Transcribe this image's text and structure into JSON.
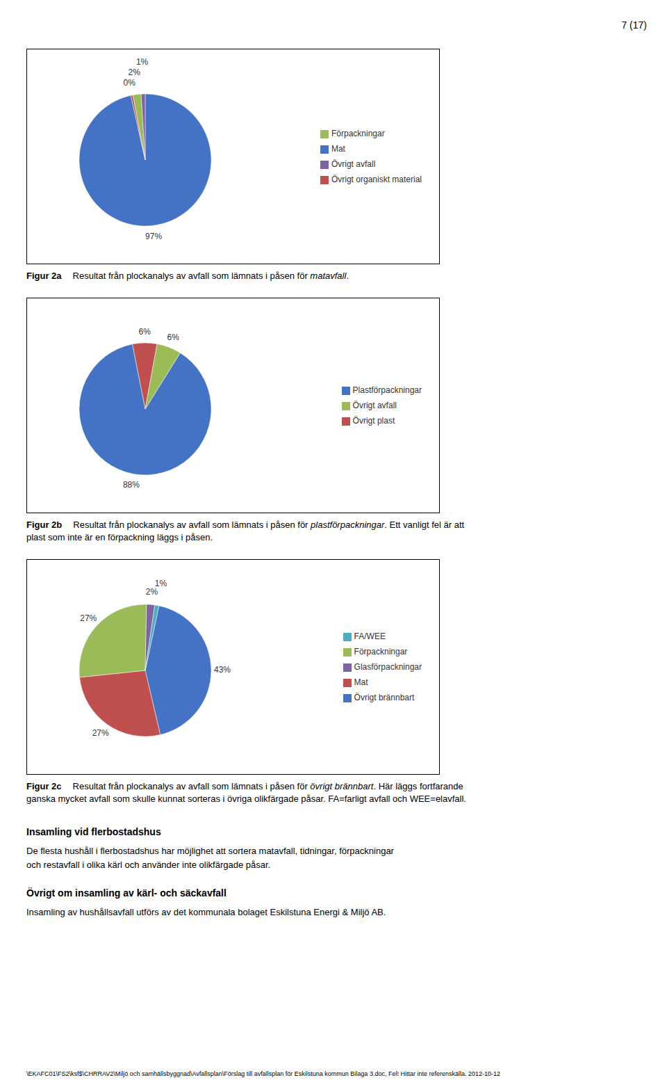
{
  "page_number": "7 (17)",
  "chart_data": [
    {
      "type": "pie",
      "categories": [
        "Mat",
        "Övrigt organiskt material",
        "Förpackningar",
        "Övrigt avfall"
      ],
      "values": [
        97,
        0.5,
        2,
        1
      ],
      "value_labels": [
        "97%",
        "0%",
        "2%",
        "1%"
      ],
      "colors": [
        "#4472C4",
        "#C0504D",
        "#9BBB59",
        "#8064A2"
      ],
      "data_labels": true,
      "legend": "right",
      "caption": [
        "Figur 2a",
        "Resultat från plockanalys av avfall som lämnats i påsen för ",
        "matavfall",
        "."
      ]
    },
    {
      "type": "pie",
      "categories": [
        "Plastförpackningar",
        "Övrigt plast",
        "Övrigt avfall"
      ],
      "values": [
        88,
        6,
        6
      ],
      "value_labels": [
        "88%",
        "6%",
        "6%"
      ],
      "colors": [
        "#4472C4",
        "#C0504D",
        "#9BBB59"
      ],
      "data_labels": true,
      "legend": "right",
      "caption": [
        "Figur 2b",
        "Resultat från plockanalys av avfall som lämnats i påsen för ",
        "plastförpackningar",
        ". Ett vanligt fel är att plast som inte är en förpackning läggs i påsen."
      ]
    },
    {
      "type": "pie",
      "categories": [
        "Övrigt brännbart",
        "Mat",
        "Förpackningar",
        "Glasförpackningar",
        "FA/WEE"
      ],
      "values": [
        43,
        27,
        27,
        2,
        1
      ],
      "value_labels": [
        "43%",
        "27%",
        "27%",
        "2%",
        "1%"
      ],
      "colors": [
        "#4472C4",
        "#C0504D",
        "#9BBB59",
        "#8064A2",
        "#4BACC6"
      ],
      "data_labels": true,
      "legend": "right",
      "caption": [
        "Figur 2c",
        "Resultat från plockanalys av avfall som lämnats i påsen för ",
        "övrigt brännbart",
        ". Här läggs fortfarande ganska mycket avfall som skulle kunnat sorteras i övriga olikfärgade påsar. FA=farligt avfall och WEE=elavfall."
      ]
    }
  ],
  "sections": [
    {
      "title": "Insamling vid flerbostadshus",
      "lines": [
        "De flesta hushåll i flerbostadshus har möjlighet att sortera matavfall, tidningar, förpackningar",
        "och restavfall i olika kärl och använder inte olikfärgade påsar."
      ]
    },
    {
      "title": "Övrigt om insamling av kärl- och säckavfall",
      "lines": [
        "Insamling av hushållsavfall utförs av det kommunala bolaget Eskilstuna Energi & Miljö AB."
      ]
    }
  ],
  "footer": "\\EKAFC01\\FS2\\ksf$\\CHRRAV2\\Miljö och samhällsbyggnad\\Avfallsplan\\Förslag till avfallsplan för Eskilstuna kommun Bilaga 3.doc, Fel! Hittar inte referenskälla. 2012-10-12"
}
